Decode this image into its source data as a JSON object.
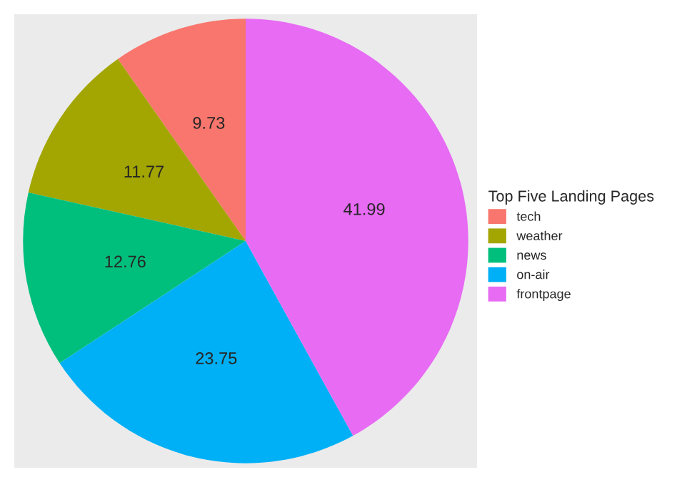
{
  "chart_data": {
    "type": "pie",
    "legend_title": "Top Five Landing Pages",
    "categories": [
      "tech",
      "weather",
      "news",
      "on-air",
      "frontpage"
    ],
    "values": [
      9.73,
      11.77,
      12.76,
      23.75,
      41.99
    ],
    "colors": [
      "#f8766d",
      "#a3a500",
      "#00bf7d",
      "#00b0f6",
      "#e76bf3"
    ],
    "data_labels": true,
    "legend": "right"
  }
}
